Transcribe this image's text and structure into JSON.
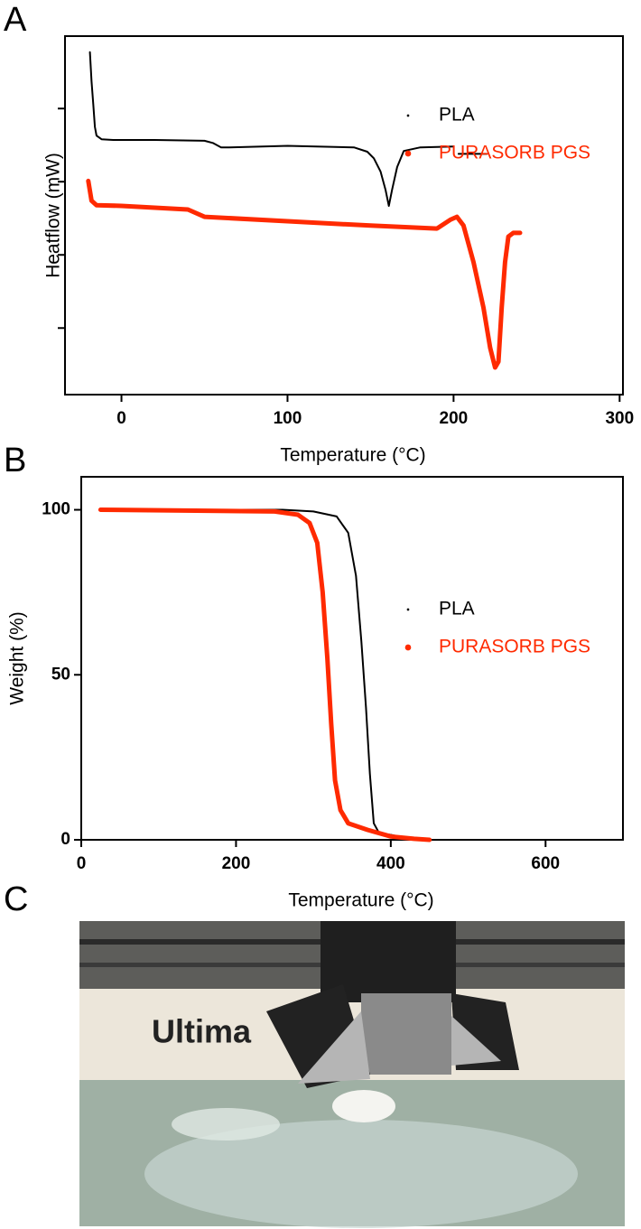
{
  "panels": [
    "A",
    "B",
    "C"
  ],
  "chart_data": [
    {
      "type": "line",
      "x_label": "Temperature (°C)",
      "y_label": "Heatflow (mW)",
      "xlim": [
        -34,
        302
      ],
      "xticks": [
        0,
        100,
        200,
        300
      ],
      "ylim": [
        0.09,
        4.99
      ],
      "yticks": [
        1,
        2,
        3,
        4
      ],
      "ytick_labels": false,
      "legend": "right",
      "series": [
        {
          "name": "PLA",
          "color": "#000000",
          "width": 2,
          "x": [
            -19,
            -18,
            -17,
            -16,
            -15,
            -12,
            -5,
            20,
            50,
            55,
            60,
            65,
            100,
            140,
            148,
            152,
            156,
            159,
            161,
            163,
            166,
            170,
            180,
            200,
            null,
            203,
            220
          ],
          "values": [
            4.77,
            4.37,
            4.06,
            3.75,
            3.63,
            3.58,
            3.57,
            3.57,
            3.56,
            3.53,
            3.47,
            3.47,
            3.49,
            3.47,
            3.41,
            3.32,
            3.14,
            2.89,
            2.67,
            2.89,
            3.2,
            3.42,
            3.47,
            3.48,
            null,
            3.38,
            3.38
          ]
        },
        {
          "name": "PURASORB PGS",
          "color": "#ff2a00",
          "width": 5,
          "x": [
            -20,
            -18,
            -15,
            0,
            40,
            50,
            100,
            150,
            190,
            198,
            202,
            206,
            212,
            218,
            222,
            225,
            227,
            229,
            231,
            233,
            236,
            240
          ],
          "values": [
            3.01,
            2.74,
            2.68,
            2.67,
            2.62,
            2.52,
            2.46,
            2.4,
            2.36,
            2.48,
            2.52,
            2.4,
            1.9,
            1.28,
            0.73,
            0.46,
            0.54,
            1.28,
            1.9,
            2.25,
            2.3,
            2.3
          ]
        }
      ]
    },
    {
      "type": "line",
      "x_label": "Temperature (°C)",
      "y_label": "Weight (%)",
      "xlim": [
        0,
        700
      ],
      "xticks": [
        0,
        200,
        400,
        600
      ],
      "ylim": [
        0,
        110
      ],
      "yticks": [
        0,
        50,
        100
      ],
      "ytick_labels": true,
      "legend": "right",
      "series": [
        {
          "name": "PLA",
          "color": "#000000",
          "width": 2,
          "x": [
            25,
            260,
            300,
            330,
            345,
            355,
            362,
            368,
            373,
            378,
            385,
            400,
            420,
            440,
            520
          ],
          "values": [
            100,
            100,
            99.5,
            98,
            93,
            80,
            60,
            40,
            20,
            5,
            2,
            1.5,
            0.5,
            0,
            0
          ]
        },
        {
          "name": "PURASORB PGS",
          "color": "#ff2a00",
          "width": 5,
          "x": [
            25,
            250,
            280,
            295,
            305,
            312,
            318,
            323,
            328,
            335,
            345,
            370,
            400,
            430,
            450
          ],
          "values": [
            100,
            99.5,
            98.5,
            96,
            90,
            75,
            55,
            35,
            18,
            9,
            5,
            3,
            1,
            0.3,
            0
          ]
        }
      ]
    }
  ],
  "photo_text": "Ultima"
}
